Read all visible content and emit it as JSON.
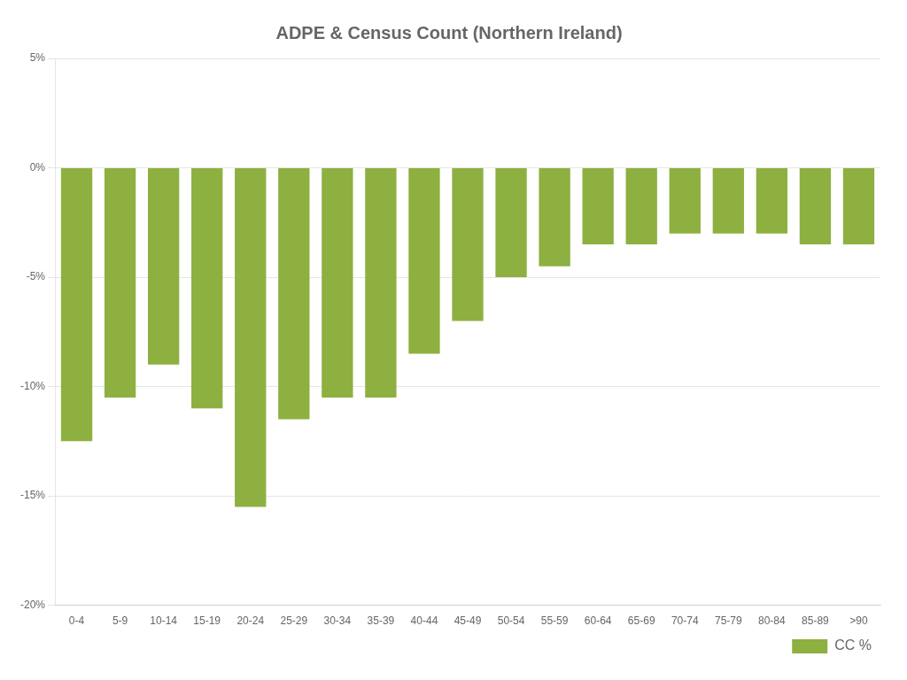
{
  "chart_data": {
    "type": "bar",
    "title": "ADPE & Census Count (Northern Ireland)",
    "categories": [
      "0-4",
      "5-9",
      "10-14",
      "15-19",
      "20-24",
      "25-29",
      "30-34",
      "35-39",
      "40-44",
      "45-49",
      "50-54",
      "55-59",
      "60-64",
      "65-69",
      "70-74",
      "75-79",
      "80-84",
      "85-89",
      ">90"
    ],
    "series": [
      {
        "name": "CC %",
        "color": "#8db041",
        "values": [
          -12.5,
          -10.5,
          -9.0,
          -11.0,
          -15.5,
          -11.5,
          -10.5,
          -10.5,
          -8.5,
          -7.0,
          -5.0,
          -4.5,
          -3.5,
          -3.5,
          -3.0,
          -3.0,
          -3.0,
          -3.5,
          -3.5
        ]
      }
    ],
    "ylim": [
      -20,
      5
    ],
    "yticks": [
      {
        "value": 5,
        "label": "5%"
      },
      {
        "value": 0,
        "label": "0%"
      },
      {
        "value": -5,
        "label": "-5%"
      },
      {
        "value": -10,
        "label": "-10%"
      },
      {
        "value": -15,
        "label": "-15%"
      },
      {
        "value": -20,
        "label": "-20%"
      }
    ],
    "grid": true,
    "legend": "lower right"
  }
}
